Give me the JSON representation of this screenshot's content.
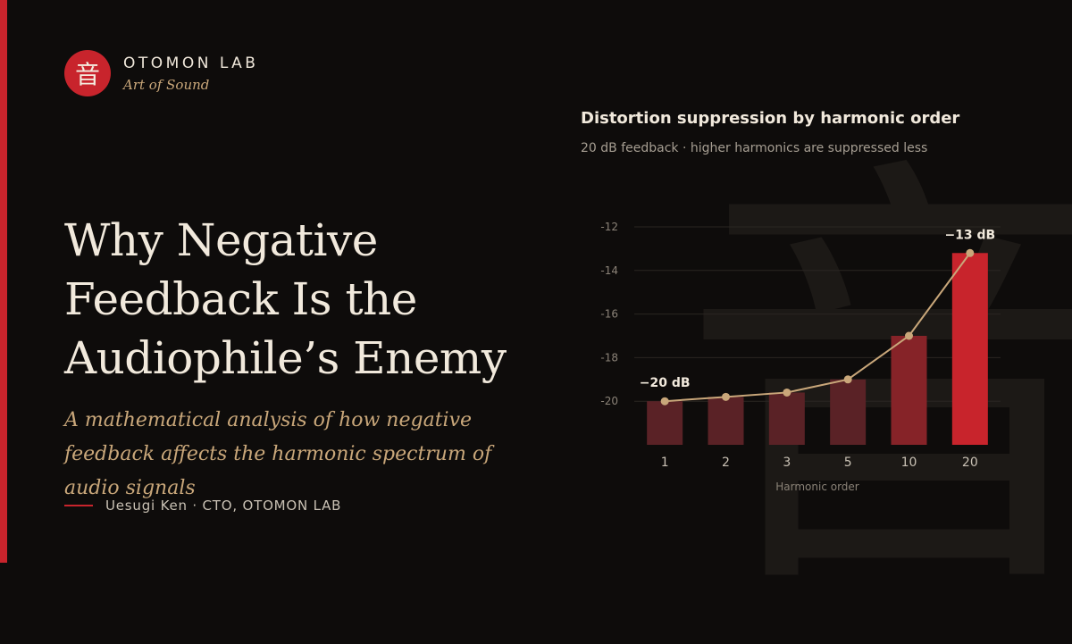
{
  "brand": {
    "seal_glyph": "音",
    "name": "OTOMON LAB",
    "tagline": "Art of Sound"
  },
  "article": {
    "title": "Why Negative Feedback Is the Audiophile’s Enemy",
    "subtitle": "A mathematical analysis of how negative feedback affects the harmonic spectrum of audio signals",
    "byline": "Uesugi Ken · CTO, OTOMON LAB"
  },
  "watermark_glyph": "音",
  "colors": {
    "accent": "#c8242c",
    "bar_dark": "#5a2226",
    "bar_mid": "#862328",
    "line": "#c9a77a",
    "background": "#0e0c0b"
  },
  "chart_data": {
    "type": "bar",
    "title": "Distortion suppression by harmonic order",
    "subtitle": "20 dB feedback · higher harmonics are suppressed less",
    "xlabel": "Harmonic order",
    "ylabel": "",
    "categories": [
      "1",
      "2",
      "3",
      "5",
      "10",
      "20"
    ],
    "values": [
      -20,
      -19.8,
      -19.6,
      -19,
      -17,
      -13.2
    ],
    "line_values": [
      -20,
      -19.8,
      -19.6,
      -19,
      -17,
      -13.2
    ],
    "ylim": [
      -22,
      -12
    ],
    "yticks": [
      -12,
      -14,
      -16,
      -18,
      -20
    ],
    "ytick_labels": [
      "-12",
      "-14",
      "-16",
      "-18",
      "-20"
    ],
    "grid": true,
    "annotations": [
      {
        "index": 0,
        "text": "−20 dB"
      },
      {
        "index": 5,
        "text": "−13 dB"
      }
    ]
  }
}
